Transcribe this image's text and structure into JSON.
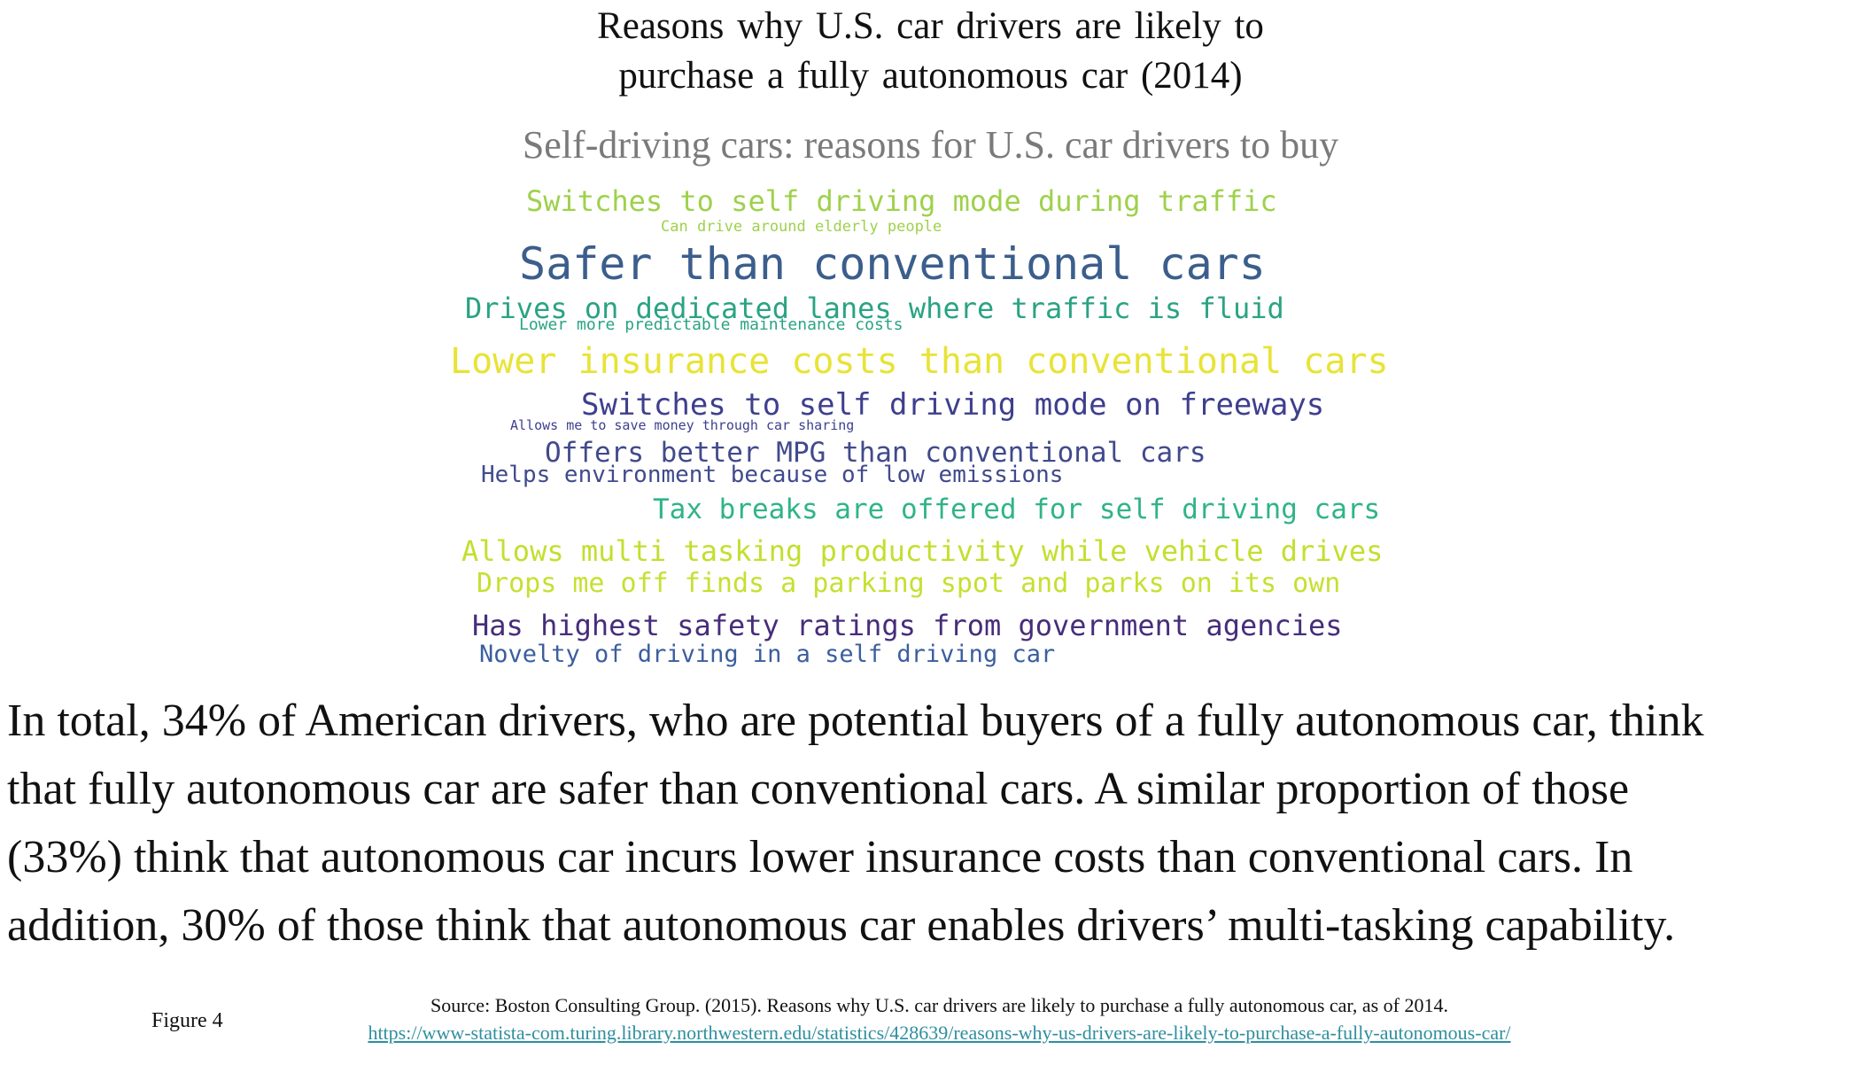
{
  "header": {
    "title_line1": "Reasons why U.S. car drivers are likely to",
    "title_line2": "purchase a fully autonomous car (2014)"
  },
  "word_cloud": {
    "title": "Self-driving cars: reasons for U.S. car drivers to buy",
    "words": [
      {
        "text": "Switches to self driving mode during traffic",
        "color": "#9ed14b"
      },
      {
        "text": "Can drive around elderly people",
        "color": "#9ed14b"
      },
      {
        "text": "Safer than conventional cars",
        "color": "#3b5e8c"
      },
      {
        "text": "Drives on dedicated lanes where traffic is fluid",
        "color": "#2aa383"
      },
      {
        "text": "Lower more predictable maintenance costs",
        "color": "#2aa383"
      },
      {
        "text": "Lower insurance costs than conventional cars",
        "color": "#e8e337"
      },
      {
        "text": "Switches to self driving mode on freeways",
        "color": "#3e3f8e"
      },
      {
        "text": "Allows me to save money through car sharing",
        "color": "#3e3f8e"
      },
      {
        "text": "Offers better MPG than conventional cars",
        "color": "#414a8c"
      },
      {
        "text": "Helps environment because of low emissions",
        "color": "#414a8c"
      },
      {
        "text": "Tax breaks are offered for self driving cars",
        "color": "#2fb488"
      },
      {
        "text": "Allows multi tasking productivity while vehicle drives",
        "color": "#c2df2f"
      },
      {
        "text": "Drops me off finds a parking spot and parks on its own",
        "color": "#c6e031"
      },
      {
        "text": "Has highest safety ratings from government agencies",
        "color": "#472d7b"
      },
      {
        "text": "Novelty of driving in a self driving car",
        "color": "#3b5e9e"
      }
    ]
  },
  "paragraph": {
    "line1": "In total, 34% of American drivers, who are potential buyers of a fully autonomous car, think",
    "line2": "that fully autonomous car are safer than conventional cars. A similar proportion of those",
    "line3": "(33%) think that autonomous car incurs lower insurance costs than conventional cars. In",
    "line4": "addition, 30% of those think that autonomous car enables drivers’ multi-tasking capability."
  },
  "figure": {
    "label": "Figure 4",
    "source": "Source: Boston Consulting Group. (2015). Reasons why U.S. car drivers are likely to purchase a fully autonomous car, as of 2014.",
    "link": "https://www-statista-com.turing.library.northwestern.edu/statistics/428639/reasons-why-us-drivers-are-likely-to-purchase-a-fully-autonomous-car/"
  }
}
